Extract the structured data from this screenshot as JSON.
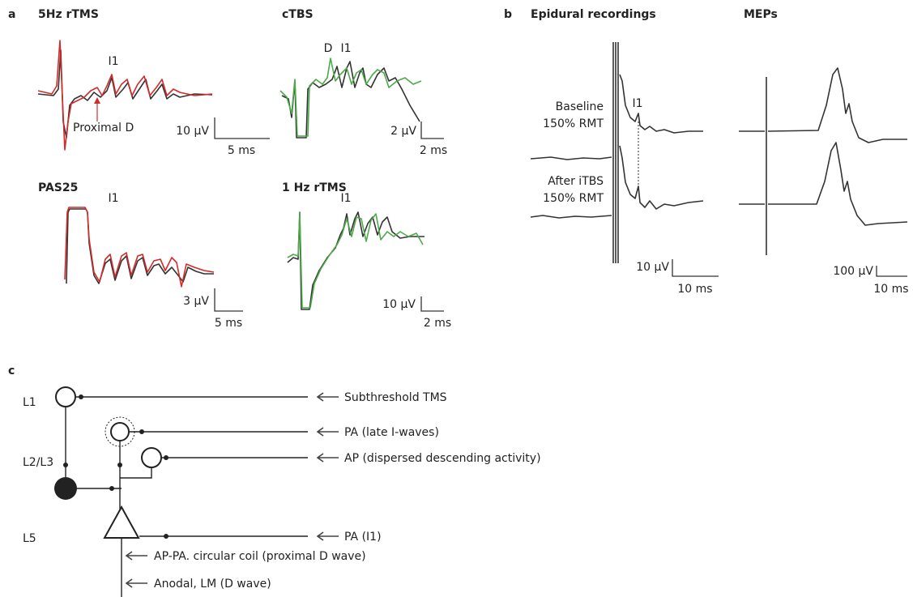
{
  "panel_a": {
    "letter": "a",
    "plots": [
      {
        "title": "5Hz rTMS",
        "peak_label": "I1",
        "note": "Proximal D",
        "scale_y": "10 μV",
        "scale_x": "5 ms"
      },
      {
        "title": "cTBS",
        "d_label": "D",
        "peak_label": "I1",
        "scale_y": "2 μV",
        "scale_x": "2 ms"
      },
      {
        "title": "PAS25",
        "peak_label": "I1",
        "scale_y": "3 μV",
        "scale_x": "5 ms"
      },
      {
        "title": "1 Hz rTMS",
        "peak_label": "I1",
        "scale_y": "10 μV",
        "scale_x": "2 ms"
      }
    ]
  },
  "panel_b": {
    "letter": "b",
    "epidural_title": "Epidural recordings",
    "mep_title": "MEPs",
    "baseline": [
      "Baseline",
      "150% RMT"
    ],
    "after": [
      "After iTBS",
      "150% RMT"
    ],
    "peak_label": "I1",
    "epidural_scale_y": "10 μV",
    "epidural_scale_x": "10 ms",
    "mep_scale_y": "100 μV",
    "mep_scale_x": "10 ms"
  },
  "panel_c": {
    "letter": "c",
    "layers": [
      "L1",
      "L2/L3",
      "L5"
    ],
    "inputs": [
      "Subthreshold TMS",
      "PA (late I-waves)",
      "AP (dispersed descending activity)",
      "PA (I1)",
      "AP-PA. circular coil (proximal D wave)",
      "Anodal, LM (D wave)"
    ]
  }
}
